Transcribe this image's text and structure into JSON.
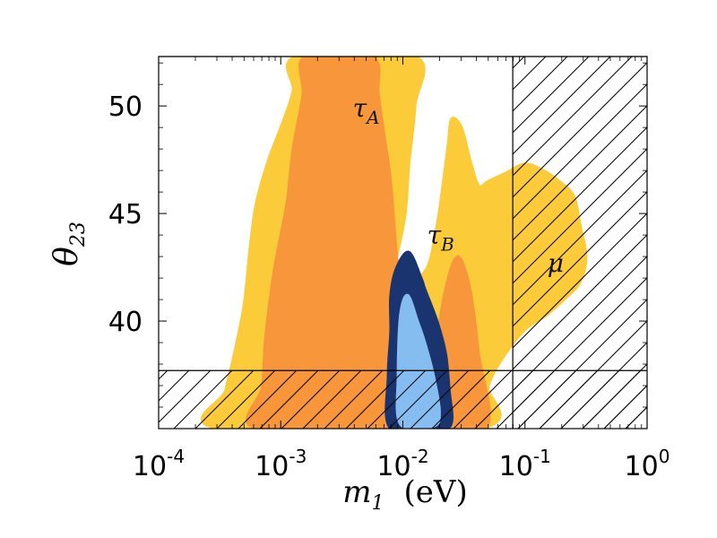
{
  "chart_data": {
    "type": "scatter",
    "title": "",
    "xlabel": "m",
    "xlabel_sub": "1",
    "xlabel_unit": "(eV)",
    "ylabel": "θ",
    "ylabel_sub": "23",
    "xscale": "log",
    "xlim_log10": [
      -4,
      0
    ],
    "ylim": [
      35,
      52.3
    ],
    "x_ticks": [
      {
        "base": "10",
        "exp": "-4",
        "log10": -4
      },
      {
        "base": "10",
        "exp": "-3",
        "log10": -3
      },
      {
        "base": "10",
        "exp": "-2",
        "log10": -2
      },
      {
        "base": "10",
        "exp": "-1",
        "log10": -1
      },
      {
        "base": "10",
        "exp": "0",
        "log10": 0
      }
    ],
    "y_ticks": [
      {
        "label": "40",
        "value": 40
      },
      {
        "label": "45",
        "value": 45
      },
      {
        "label": "50",
        "value": 50
      }
    ],
    "exclusions": {
      "theta23_lower_bound": 37.7,
      "theta23_upper_bound": 52.3,
      "m1_upper_bound_log10": -1.1
    },
    "region_labels": [
      {
        "base": "τ",
        "sub": "A",
        "log10_m1": -2.3,
        "theta23": 49.5
      },
      {
        "base": "τ",
        "sub": "B",
        "log10_m1": -1.69,
        "theta23": 43.6
      },
      {
        "base": "μ",
        "sub": "",
        "log10_m1": -0.75,
        "theta23": 42.3
      }
    ],
    "series": [
      {
        "name": "yellow",
        "color": "#fbcb3a",
        "outline": [
          [
            -3.5,
            35
          ],
          [
            -3.45,
            36.8
          ],
          [
            -3.38,
            38.5
          ],
          [
            -3.3,
            40.8
          ],
          [
            -3.25,
            43.5
          ],
          [
            -3.2,
            45.5
          ],
          [
            -3.1,
            47.5
          ],
          [
            -2.98,
            49.3
          ],
          [
            -2.9,
            50.7
          ],
          [
            -2.87,
            52.3
          ],
          [
            -1.9,
            52.3
          ],
          [
            -1.9,
            50
          ],
          [
            -1.95,
            47.3
          ],
          [
            -1.98,
            45
          ],
          [
            -2.05,
            43
          ],
          [
            -2.1,
            42
          ],
          [
            -1.95,
            41.8
          ],
          [
            -1.8,
            42.5
          ],
          [
            -1.72,
            44.5
          ],
          [
            -1.68,
            46
          ],
          [
            -1.63,
            48.2
          ],
          [
            -1.6,
            49.4
          ],
          [
            -1.52,
            49
          ],
          [
            -1.45,
            47.5
          ],
          [
            -1.38,
            46.3
          ],
          [
            -1.3,
            46.5
          ],
          [
            -1.15,
            46.9
          ],
          [
            -1.0,
            47.3
          ],
          [
            -0.85,
            47
          ],
          [
            -0.72,
            46.5
          ],
          [
            -0.6,
            45.8
          ],
          [
            -0.55,
            44.5
          ],
          [
            -0.5,
            43
          ],
          [
            -0.55,
            41.8
          ],
          [
            -0.68,
            41
          ],
          [
            -0.82,
            40.3
          ],
          [
            -1.0,
            39.6
          ],
          [
            -1.18,
            38.3
          ],
          [
            -1.3,
            37
          ],
          [
            -1.38,
            35
          ]
        ]
      },
      {
        "name": "orange",
        "color": "#f7963a",
        "outline": [
          [
            -3.2,
            35
          ],
          [
            -3.15,
            37
          ],
          [
            -3.12,
            39.5
          ],
          [
            -3.05,
            42.5
          ],
          [
            -2.95,
            45.5
          ],
          [
            -2.9,
            48
          ],
          [
            -2.82,
            50.5
          ],
          [
            -2.8,
            52.3
          ],
          [
            -2.25,
            52.3
          ],
          [
            -2.2,
            50.5
          ],
          [
            -2.15,
            48.5
          ],
          [
            -2.1,
            46.5
          ],
          [
            -2.05,
            43
          ],
          [
            -2.0,
            40.5
          ],
          [
            -2.05,
            39.5
          ],
          [
            -2.05,
            36.5
          ],
          [
            -2.0,
            35
          ]
        ]
      },
      {
        "name": "orange",
        "color": "#f7963a",
        "outline": [
          [
            -1.9,
            35
          ],
          [
            -1.82,
            36.5
          ],
          [
            -1.75,
            38.2
          ],
          [
            -1.65,
            41.5
          ],
          [
            -1.55,
            43
          ],
          [
            -1.45,
            41.5
          ],
          [
            -1.38,
            38.5
          ],
          [
            -1.32,
            35
          ]
        ]
      },
      {
        "name": "dark-blue",
        "color": "#1a3470",
        "outline": [
          [
            -2.1,
            35
          ],
          [
            -2.12,
            37.5
          ],
          [
            -2.1,
            39.5
          ],
          [
            -2.1,
            41.2
          ],
          [
            -2.05,
            42.5
          ],
          [
            -1.95,
            43.2
          ],
          [
            -1.85,
            42
          ],
          [
            -1.82,
            41.5
          ],
          [
            -1.72,
            40
          ],
          [
            -1.65,
            38.5
          ],
          [
            -1.62,
            36.8
          ],
          [
            -1.6,
            35.3
          ],
          [
            -1.7,
            35
          ]
        ]
      },
      {
        "name": "light-blue",
        "color": "#86bdf1",
        "outline": [
          [
            -2.02,
            35.2
          ],
          [
            -2.04,
            37.5
          ],
          [
            -2.02,
            40.3
          ],
          [
            -1.96,
            41.2
          ],
          [
            -1.88,
            40
          ],
          [
            -1.82,
            39
          ],
          [
            -1.75,
            37.5
          ],
          [
            -1.7,
            35.8
          ],
          [
            -1.75,
            35.1
          ]
        ]
      }
    ]
  }
}
